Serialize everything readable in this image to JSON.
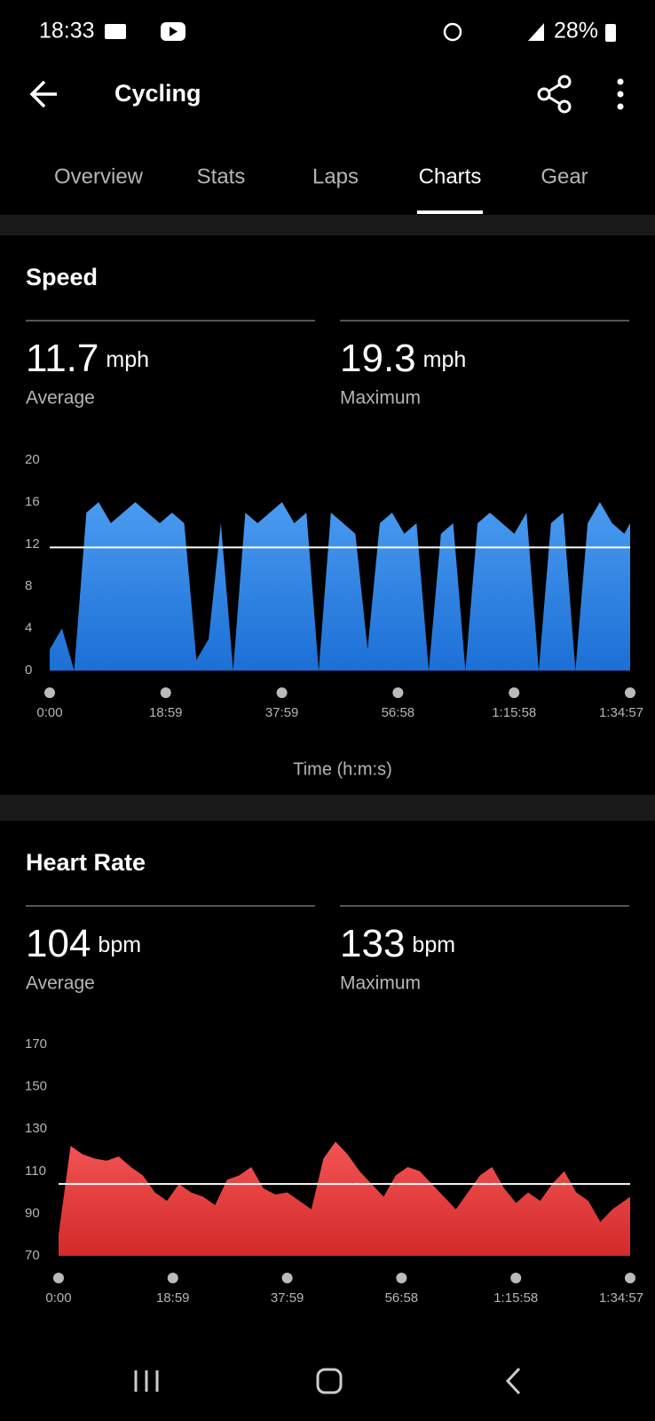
{
  "status_bar": {
    "time": "18:33",
    "battery": "28%"
  },
  "header": {
    "title": "Cycling"
  },
  "tabs": {
    "items": [
      "Overview",
      "Stats",
      "Laps",
      "Charts",
      "Gear"
    ],
    "active": 3
  },
  "chart_data": [
    {
      "type": "area",
      "title": "Speed",
      "xlabel": "Time (h:m:s)",
      "color": "#2f86e8",
      "stats": [
        {
          "value": 11.7,
          "unit": "mph",
          "label": "Average"
        },
        {
          "value": 19.3,
          "unit": "mph",
          "label": "Maximum"
        }
      ],
      "x": [
        0,
        120,
        240,
        360,
        480,
        600,
        720,
        840,
        960,
        1080,
        1200,
        1320,
        1440,
        1560,
        1680,
        1800,
        1920,
        2040,
        2160,
        2280,
        2400,
        2520,
        2640,
        2760,
        2880,
        3000,
        3120,
        3240,
        3360,
        3480,
        3600,
        3720,
        3840,
        3960,
        4080,
        4200,
        4320,
        4440,
        4560,
        4680,
        4800,
        4920,
        5040,
        5160,
        5280,
        5400,
        5520,
        5640,
        5697
      ],
      "values": [
        2,
        4,
        0,
        15,
        16,
        14,
        15,
        16,
        15,
        14,
        15,
        14,
        1,
        3,
        14,
        0,
        15,
        14,
        15,
        16,
        14,
        15,
        0,
        15,
        14,
        13,
        2,
        14,
        15,
        13,
        14,
        0,
        13,
        14,
        0,
        14,
        15,
        14,
        13,
        15,
        0,
        14,
        15,
        0,
        14,
        16,
        14,
        13,
        14
      ],
      "xlim": [
        0,
        5697
      ],
      "xticks": [
        {
          "value": 0,
          "label": "0:00"
        },
        {
          "value": 1139,
          "label": "18:59"
        },
        {
          "value": 2279,
          "label": "37:59"
        },
        {
          "value": 3418,
          "label": "56:58"
        },
        {
          "value": 4558,
          "label": "1:15:58"
        },
        {
          "value": 5697,
          "label": "1:34:57"
        }
      ],
      "ylim": [
        0,
        20
      ],
      "yticks": [
        0,
        4,
        8,
        12,
        16,
        20
      ]
    },
    {
      "type": "area",
      "title": "Heart Rate",
      "color": "#e8393a",
      "stats": [
        {
          "value": 104,
          "unit": "bpm",
          "label": "Average"
        },
        {
          "value": 133,
          "unit": "bpm",
          "label": "Maximum"
        }
      ],
      "x": [
        0,
        120,
        240,
        360,
        480,
        600,
        720,
        840,
        960,
        1080,
        1200,
        1320,
        1440,
        1560,
        1680,
        1800,
        1920,
        2040,
        2160,
        2280,
        2400,
        2520,
        2640,
        2760,
        2880,
        3000,
        3120,
        3240,
        3360,
        3480,
        3600,
        3720,
        3840,
        3960,
        4080,
        4200,
        4320,
        4440,
        4560,
        4680,
        4800,
        4920,
        5040,
        5160,
        5280,
        5400,
        5520,
        5640,
        5697
      ],
      "values": [
        80,
        122,
        118,
        116,
        115,
        117,
        112,
        108,
        100,
        96,
        104,
        100,
        98,
        94,
        106,
        108,
        112,
        102,
        99,
        100,
        96,
        92,
        116,
        124,
        118,
        110,
        104,
        98,
        108,
        112,
        110,
        104,
        98,
        92,
        100,
        108,
        112,
        102,
        95,
        100,
        96,
        104,
        110,
        100,
        96,
        86,
        92,
        96,
        98
      ],
      "xlim": [
        0,
        5697
      ],
      "xticks": [
        {
          "value": 0,
          "label": "0:00"
        },
        {
          "value": 1139,
          "label": "18:59"
        },
        {
          "value": 2279,
          "label": "37:59"
        },
        {
          "value": 3418,
          "label": "56:58"
        },
        {
          "value": 4558,
          "label": "1:15:58"
        },
        {
          "value": 5697,
          "label": "1:34:57"
        }
      ],
      "ylim": [
        70,
        170
      ],
      "yticks": [
        70,
        90,
        110,
        130,
        150,
        170
      ]
    }
  ]
}
